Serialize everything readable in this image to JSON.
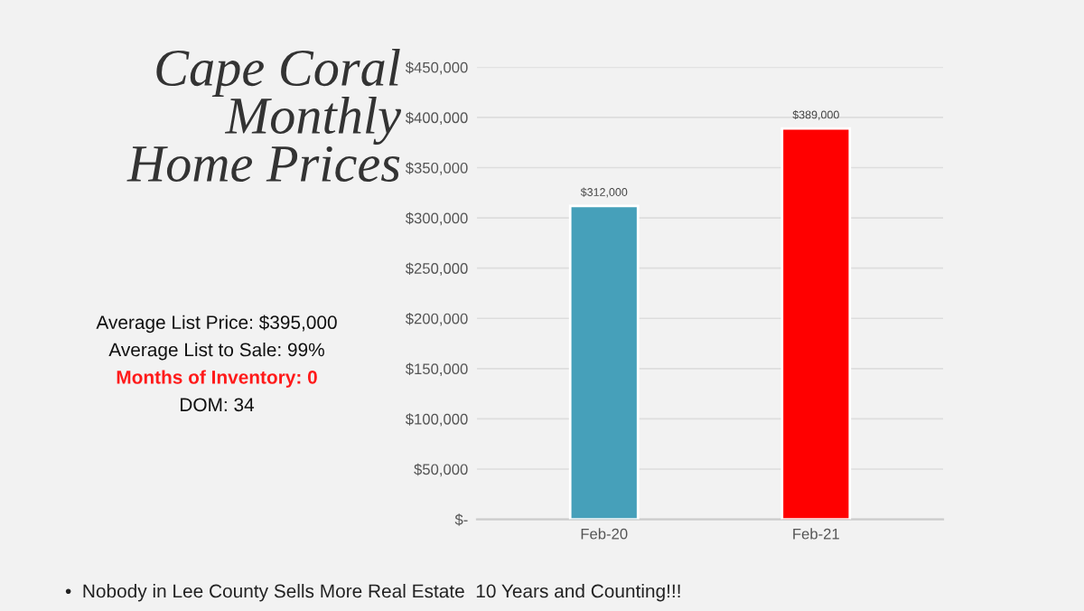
{
  "chart_data": {
    "type": "bar",
    "title": "Cape Coral Monthly Home Prices",
    "categories": [
      "Feb-20",
      "Feb-21"
    ],
    "values": [
      312000,
      389000
    ],
    "colors": [
      "#46a0ba",
      "#ff0000"
    ],
    "value_labels": [
      "$312,000",
      "$389,000"
    ],
    "ylim": [
      0,
      450000
    ],
    "yticks": [
      {
        "value": 0,
        "label": "$-"
      },
      {
        "value": 50000,
        "label": "$50,000"
      },
      {
        "value": 100000,
        "label": "$100,000"
      },
      {
        "value": 150000,
        "label": "$150,000"
      },
      {
        "value": 200000,
        "label": "$200,000"
      },
      {
        "value": 250000,
        "label": "$250,000"
      },
      {
        "value": 300000,
        "label": "$300,000"
      },
      {
        "value": 350000,
        "label": "$350,000"
      },
      {
        "value": 400000,
        "label": "$400,000"
      },
      {
        "value": 450000,
        "label": "$450,000"
      }
    ],
    "grid": "y",
    "annotations": [
      "Average List Price: $395,000",
      "Average List to Sale: 99%",
      "Months of Inventory: 0",
      "DOM: 34",
      "•  Nobody in Lee County Sells More Real Estate  10 Years and Counting!!!"
    ]
  }
}
